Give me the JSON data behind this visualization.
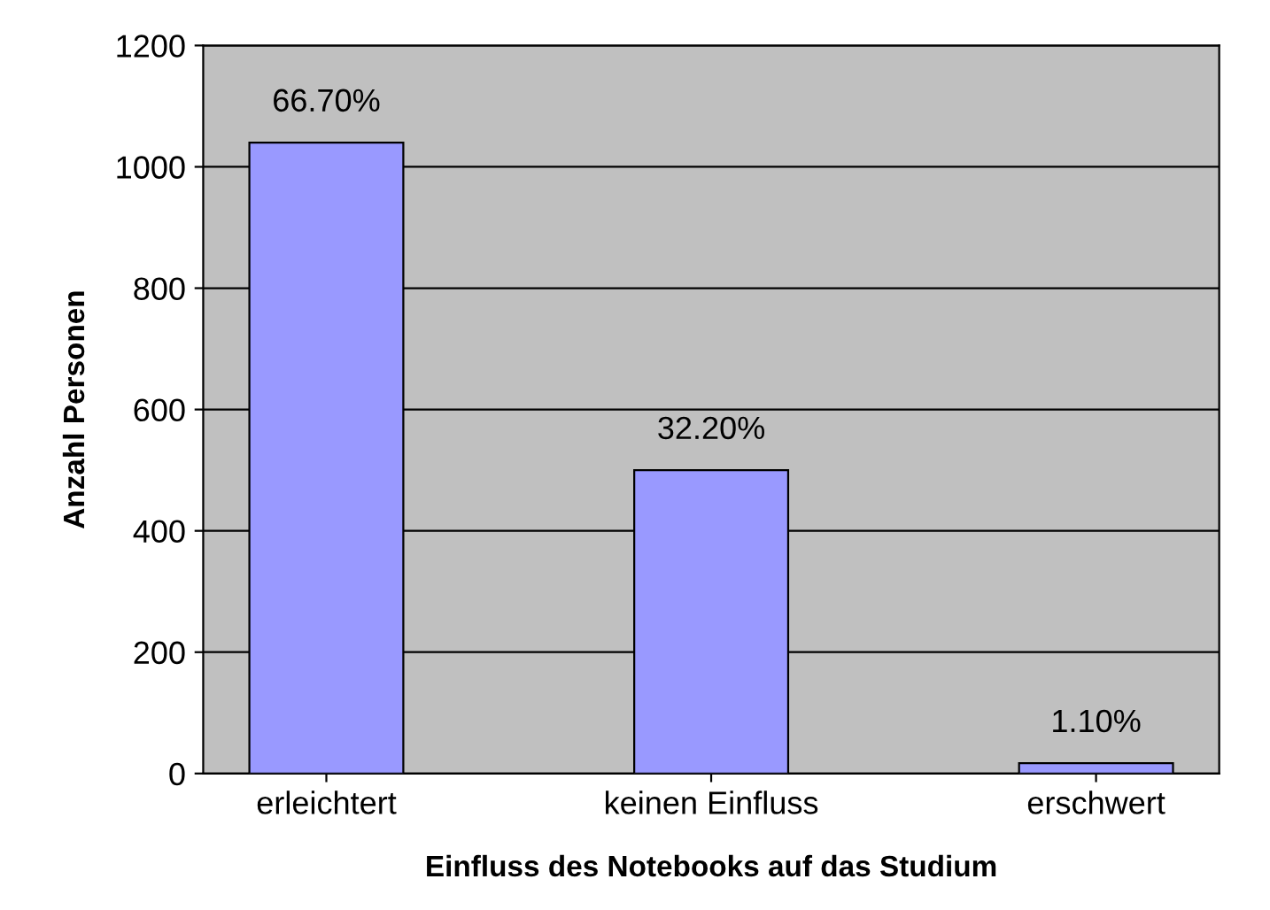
{
  "chart_data": {
    "type": "bar",
    "xlabel": "Einfluss des Notebooks auf das Studium",
    "ylabel": "Anzahl Personen",
    "categories": [
      "erleichtert",
      "keinen Einfluss",
      "erschwert"
    ],
    "values": [
      1040,
      500,
      17
    ],
    "color": "#9999ff",
    "annotations": [
      {
        "text": "66.70%",
        "x": "erleichtert",
        "y": 1040
      },
      {
        "text": "32.20%",
        "x": "keinen Einfluss",
        "y": 500
      },
      {
        "text": "1.10%",
        "x": "erschwert",
        "y": 17
      }
    ],
    "ylim": [
      0,
      1200
    ],
    "yticks": [
      0,
      200,
      400,
      600,
      800,
      1000,
      1200
    ],
    "grid": "y",
    "legend": false
  }
}
